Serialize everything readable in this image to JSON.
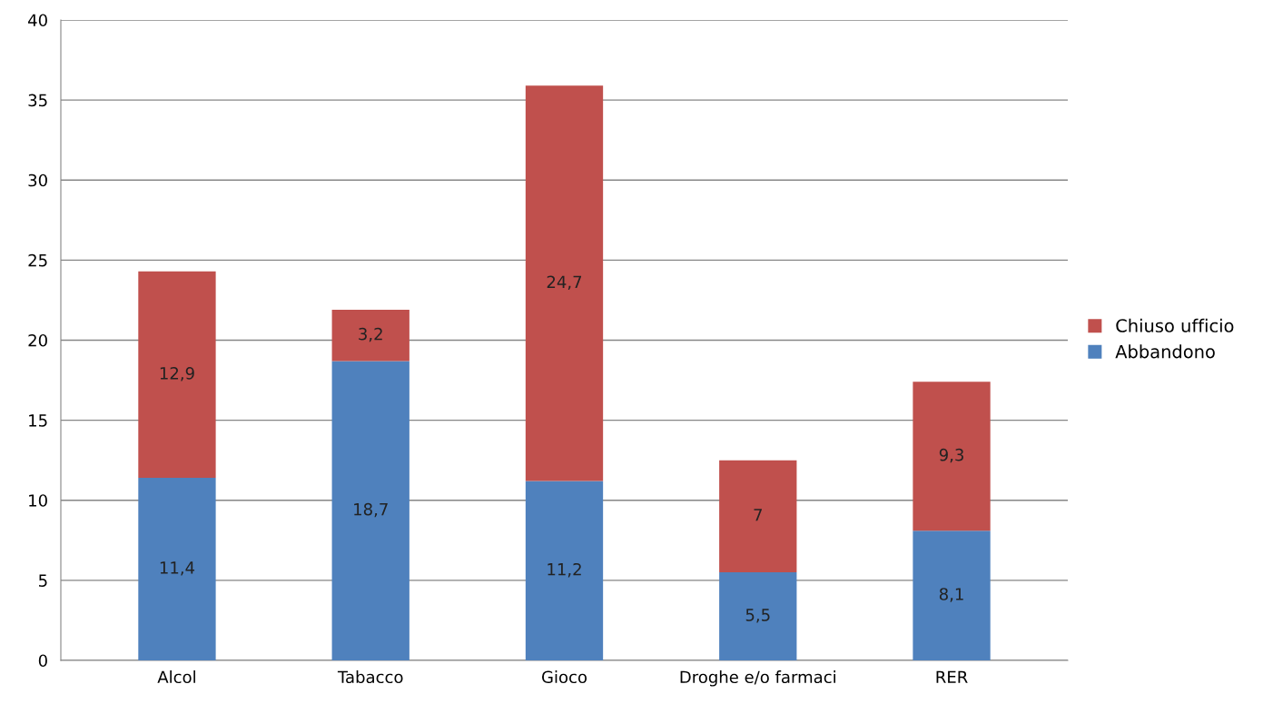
{
  "chart_data": {
    "type": "bar",
    "stacked": true,
    "categories": [
      "Alcol",
      "Tabacco",
      "Gioco",
      "Droghe e/o farmaci",
      "RER"
    ],
    "series": [
      {
        "name": "Abbandono",
        "color": "#4f81bd",
        "values": [
          11.4,
          18.7,
          11.2,
          5.5,
          8.1
        ],
        "value_labels": [
          "11,4",
          "18,7",
          "11,2",
          "5,5",
          "8,1"
        ]
      },
      {
        "name": "Chiuso ufficio",
        "color": "#c0504d",
        "values": [
          12.9,
          3.2,
          24.7,
          7,
          9.3
        ],
        "value_labels": [
          "12,9",
          "3,2",
          "24,7",
          "7",
          "9,3"
        ]
      }
    ],
    "ylim": [
      0,
      40
    ],
    "yticks": [
      0,
      5,
      10,
      15,
      20,
      25,
      30,
      35,
      40
    ],
    "grid": "y",
    "legend": "right"
  }
}
